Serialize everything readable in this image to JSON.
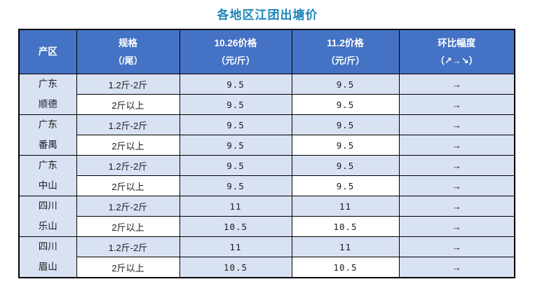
{
  "title": "各地区江团出塘价",
  "colors": {
    "title_text": "#1B86B8",
    "header_bg": "#4472C4",
    "header_text": "#FFFFFF",
    "row_lavender_bg": "#D9E2F3",
    "row_white_bg": "#FFFFFF",
    "border": "#000000",
    "body_text": "#1A1A1A"
  },
  "table": {
    "headers": [
      {
        "line1": "产区",
        "line2": ""
      },
      {
        "line1": "规格",
        "line2": "（/尾）"
      },
      {
        "line1": "10.26价格",
        "line2": "（元/斤）"
      },
      {
        "line1": "11.2价格",
        "line2": "（元/斤）"
      },
      {
        "line1": "环比幅度",
        "line2": "（↗→↘）"
      }
    ],
    "regions": [
      {
        "area_line1": "广东",
        "area_line2": "顺德",
        "rows": [
          {
            "spec": "1.2斤-2斤",
            "price_1026": "9.5",
            "price_112": "9.5",
            "trend": "→"
          },
          {
            "spec": "2斤以上",
            "price_1026": "9.5",
            "price_112": "9.5",
            "trend": "→"
          }
        ]
      },
      {
        "area_line1": "广东",
        "area_line2": "番禺",
        "rows": [
          {
            "spec": "1.2斤-2斤",
            "price_1026": "9.5",
            "price_112": "9.5",
            "trend": "→"
          },
          {
            "spec": "2斤以上",
            "price_1026": "9.5",
            "price_112": "9.5",
            "trend": "→"
          }
        ]
      },
      {
        "area_line1": "广东",
        "area_line2": "中山",
        "rows": [
          {
            "spec": "1.2斤-2斤",
            "price_1026": "9.5",
            "price_112": "9.5",
            "trend": "→"
          },
          {
            "spec": "2斤以上",
            "price_1026": "9.5",
            "price_112": "9.5",
            "trend": "→"
          }
        ]
      },
      {
        "area_line1": "四川",
        "area_line2": "乐山",
        "rows": [
          {
            "spec": "1.2斤-2斤",
            "price_1026": "11",
            "price_112": "11",
            "trend": "→"
          },
          {
            "spec": "2斤以上",
            "price_1026": "10.5",
            "price_112": "10.5",
            "trend": "→"
          }
        ]
      },
      {
        "area_line1": "四川",
        "area_line2": "眉山",
        "rows": [
          {
            "spec": "1.2斤-2斤",
            "price_1026": "11",
            "price_112": "11",
            "trend": "→"
          },
          {
            "spec": "2斤以上",
            "price_1026": "10.5",
            "price_112": "10.5",
            "trend": "→"
          }
        ]
      }
    ]
  },
  "chart_data": {
    "type": "table",
    "title": "各地区江团出塘价",
    "columns": [
      "产区",
      "规格（/尾）",
      "10.26价格（元/斤）",
      "11.2价格（元/斤）",
      "环比幅度（↗→↘）"
    ],
    "rows": [
      [
        "广东顺德",
        "1.2斤-2斤",
        9.5,
        9.5,
        "→"
      ],
      [
        "广东顺德",
        "2斤以上",
        9.5,
        9.5,
        "→"
      ],
      [
        "广东番禺",
        "1.2斤-2斤",
        9.5,
        9.5,
        "→"
      ],
      [
        "广东番禺",
        "2斤以上",
        9.5,
        9.5,
        "→"
      ],
      [
        "广东中山",
        "1.2斤-2斤",
        9.5,
        9.5,
        "→"
      ],
      [
        "广东中山",
        "2斤以上",
        9.5,
        9.5,
        "→"
      ],
      [
        "四川乐山",
        "1.2斤-2斤",
        11,
        11,
        "→"
      ],
      [
        "四川乐山",
        "2斤以上",
        10.5,
        10.5,
        "→"
      ],
      [
        "四川眉山",
        "1.2斤-2斤",
        11,
        11,
        "→"
      ],
      [
        "四川眉山",
        "2斤以上",
        10.5,
        10.5,
        "→"
      ]
    ]
  }
}
